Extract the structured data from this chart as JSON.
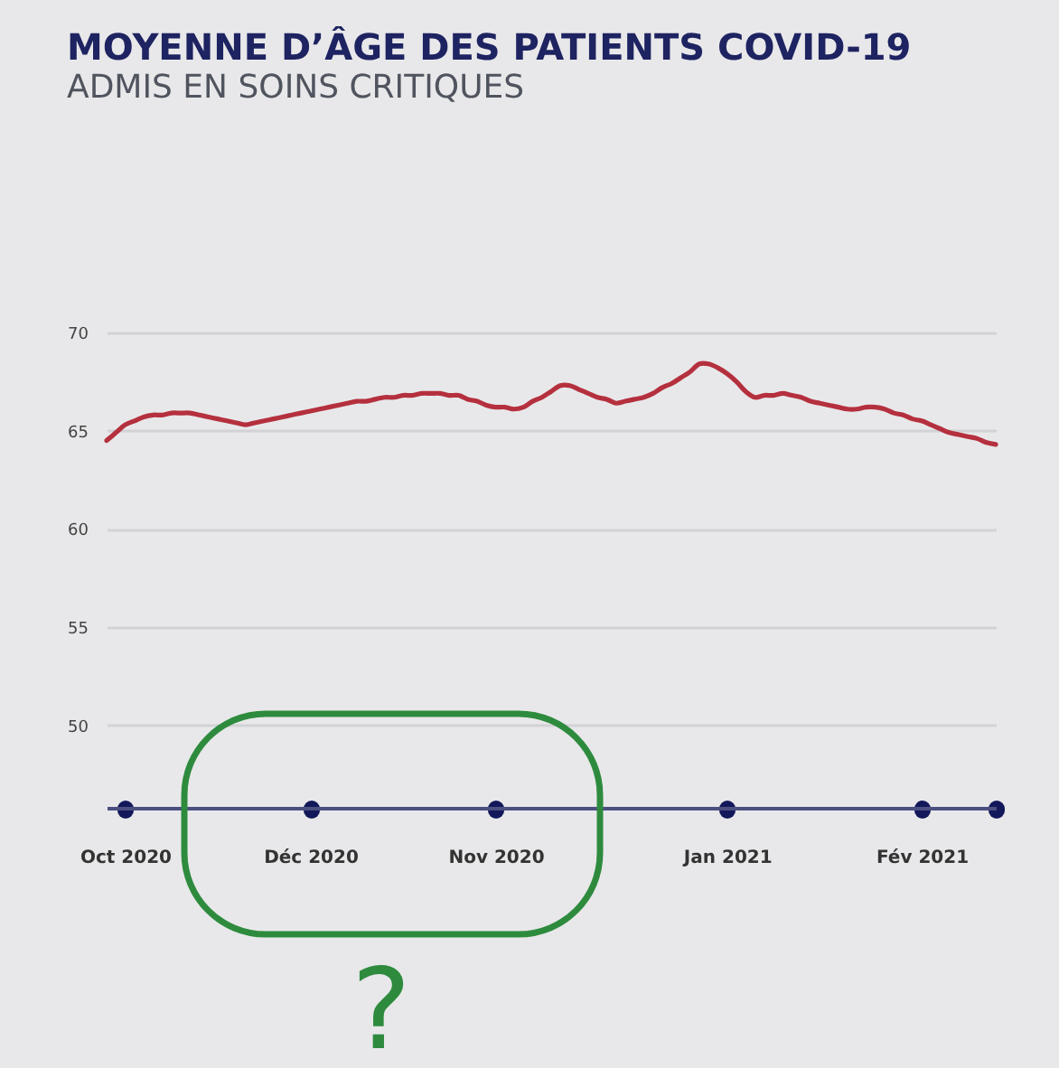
{
  "chart_data": {
    "type": "line",
    "title": "MOYENNE D’ÂGE DES PATIENTS COVID-19",
    "subtitle": "ADMIS EN SOINS CRITIQUES",
    "categories": [
      null,
      null,
      "Oct 2020",
      null,
      null,
      null,
      null,
      null,
      null,
      null,
      null,
      null,
      null,
      null,
      null,
      null,
      null,
      null,
      null,
      null,
      null,
      null,
      "Déc 2020",
      null,
      null,
      null,
      null,
      null,
      null,
      null,
      null,
      null,
      null,
      null,
      null,
      null,
      null,
      null,
      null,
      null,
      null,
      null,
      "Nov 2020",
      null,
      null,
      null,
      null,
      null,
      null,
      null,
      null,
      null,
      null,
      null,
      null,
      null,
      null,
      null,
      null,
      null,
      null,
      null,
      null,
      null,
      null,
      null,
      null,
      "Jan 2021",
      null,
      null,
      null,
      null,
      null,
      null,
      null,
      null,
      null,
      null,
      null,
      null,
      null,
      null,
      null,
      null,
      null,
      null,
      null,
      null,
      "Fév 2021",
      null,
      null,
      null,
      null,
      null,
      null,
      null,
      null
    ],
    "series": [
      {
        "color": "#b5303e",
        "values": [
          64.5,
          64.9,
          65.3,
          65.5,
          65.7,
          65.8,
          65.8,
          65.9,
          65.9,
          65.9,
          65.8,
          65.7,
          65.6,
          65.5,
          65.4,
          65.3,
          65.4,
          65.5,
          65.6,
          65.7,
          65.8,
          65.9,
          66.0,
          66.1,
          66.2,
          66.3,
          66.4,
          66.5,
          66.5,
          66.6,
          66.7,
          66.7,
          66.8,
          66.8,
          66.9,
          66.9,
          66.9,
          66.8,
          66.8,
          66.6,
          66.5,
          66.3,
          66.2,
          66.2,
          66.1,
          66.2,
          66.5,
          66.7,
          67.0,
          67.3,
          67.3,
          67.1,
          66.9,
          66.7,
          66.6,
          66.4,
          66.5,
          66.6,
          66.7,
          66.9,
          67.2,
          67.4,
          67.7,
          68.0,
          68.4,
          68.4,
          68.2,
          67.9,
          67.5,
          67.0,
          66.7,
          66.8,
          66.8,
          66.9,
          66.8,
          66.7,
          66.5,
          66.4,
          66.3,
          66.2,
          66.1,
          66.1,
          66.2,
          66.2,
          66.1,
          65.9,
          65.8,
          65.6,
          65.5,
          65.3,
          65.1,
          64.9,
          64.8,
          64.7,
          64.6,
          64.4,
          64.3
        ]
      }
    ],
    "ylim": [
      45.8,
      70
    ],
    "yticks": [
      50,
      55,
      60,
      65,
      70
    ],
    "grid": "y",
    "line_style": "solid",
    "annotations": [
      "?"
    ]
  }
}
